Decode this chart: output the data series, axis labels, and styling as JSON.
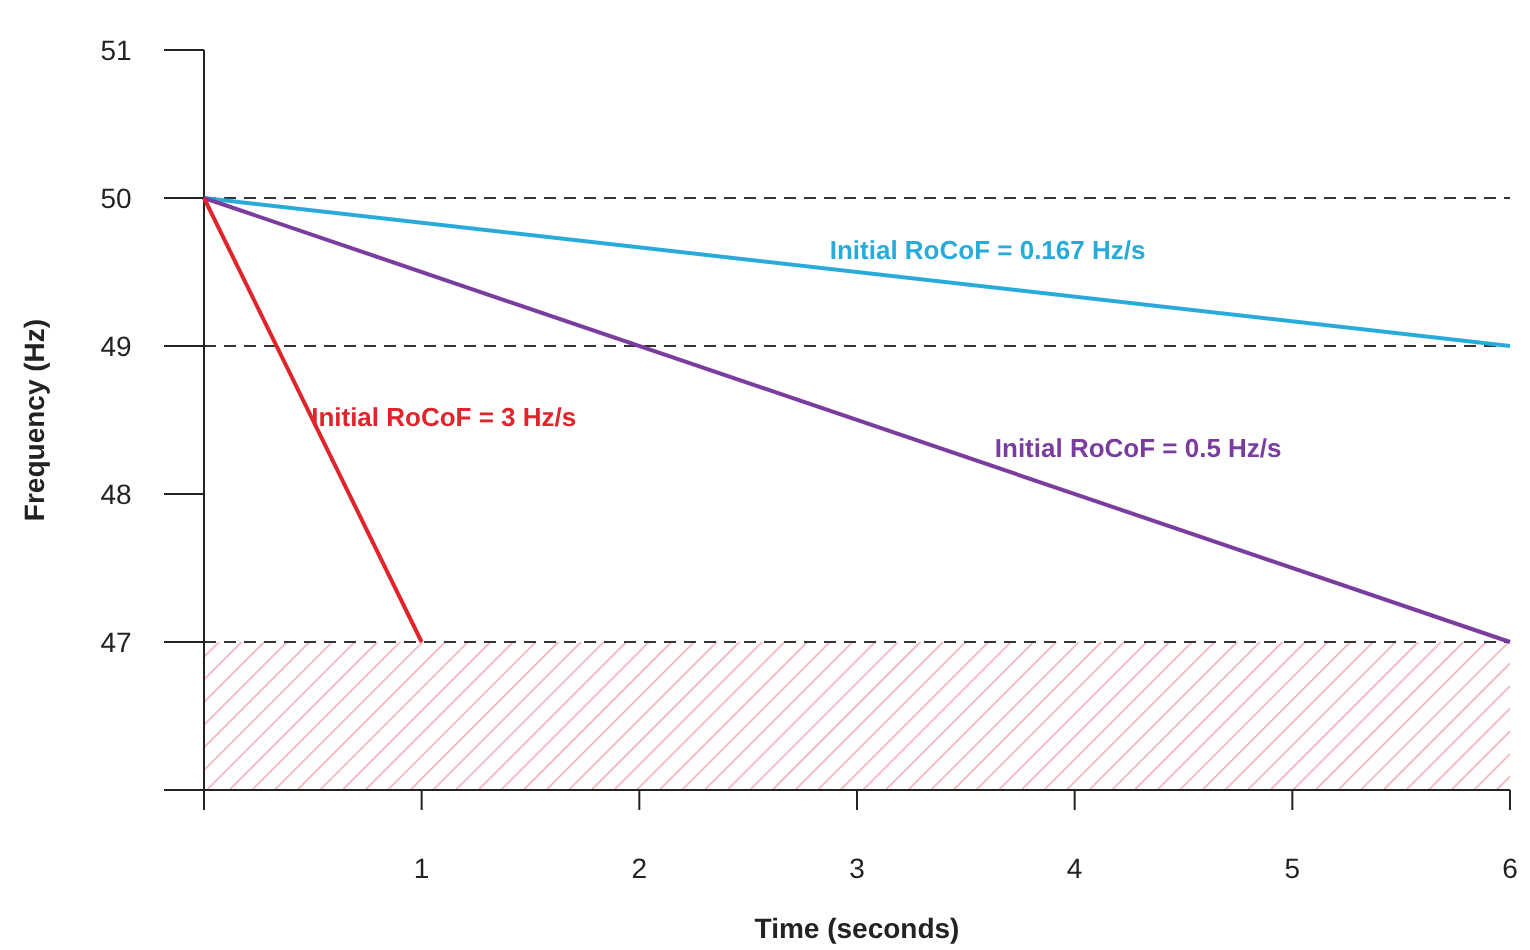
{
  "chart_data": {
    "type": "line",
    "xlabel": "Time (seconds)",
    "ylabel": "Frequency (Hz)",
    "xlim": [
      0,
      6
    ],
    "xticks": [
      {
        "value": 0,
        "label": null
      },
      1,
      2,
      3,
      4,
      5,
      6
    ],
    "ylim": [
      46,
      51
    ],
    "yticks": [
      {
        "value": 46,
        "label": null
      },
      47,
      48,
      49,
      50,
      51
    ],
    "grid": false,
    "marker": "none",
    "line_style": "solid",
    "series": [
      {
        "name": "Initial RoCoF = 0.167 Hz/s",
        "color": "#29abd9",
        "x": [
          0,
          6
        ],
        "values": [
          50,
          49
        ]
      },
      {
        "name": "Initial RoCoF = 0.5 Hz/s",
        "color": "#7a3d9e",
        "x": [
          0,
          6
        ],
        "values": [
          50,
          47
        ]
      },
      {
        "name": "Initial RoCoF = 3 Hz/s",
        "color": "#e0242b",
        "x": [
          0,
          1
        ],
        "values": [
          50,
          47
        ]
      }
    ],
    "ref_lines": [
      {
        "axis": "y",
        "value": 50,
        "color": "#333333",
        "line_style": "dashed"
      },
      {
        "axis": "y",
        "value": 49,
        "color": "#333333",
        "line_style": "dashed"
      },
      {
        "axis": "y",
        "value": 47,
        "color": "#333333",
        "line_style": "dashed"
      }
    ],
    "bands": [
      {
        "axis": "y",
        "from": 46,
        "to": 47,
        "color": "#f0a8b4"
      }
    ]
  }
}
